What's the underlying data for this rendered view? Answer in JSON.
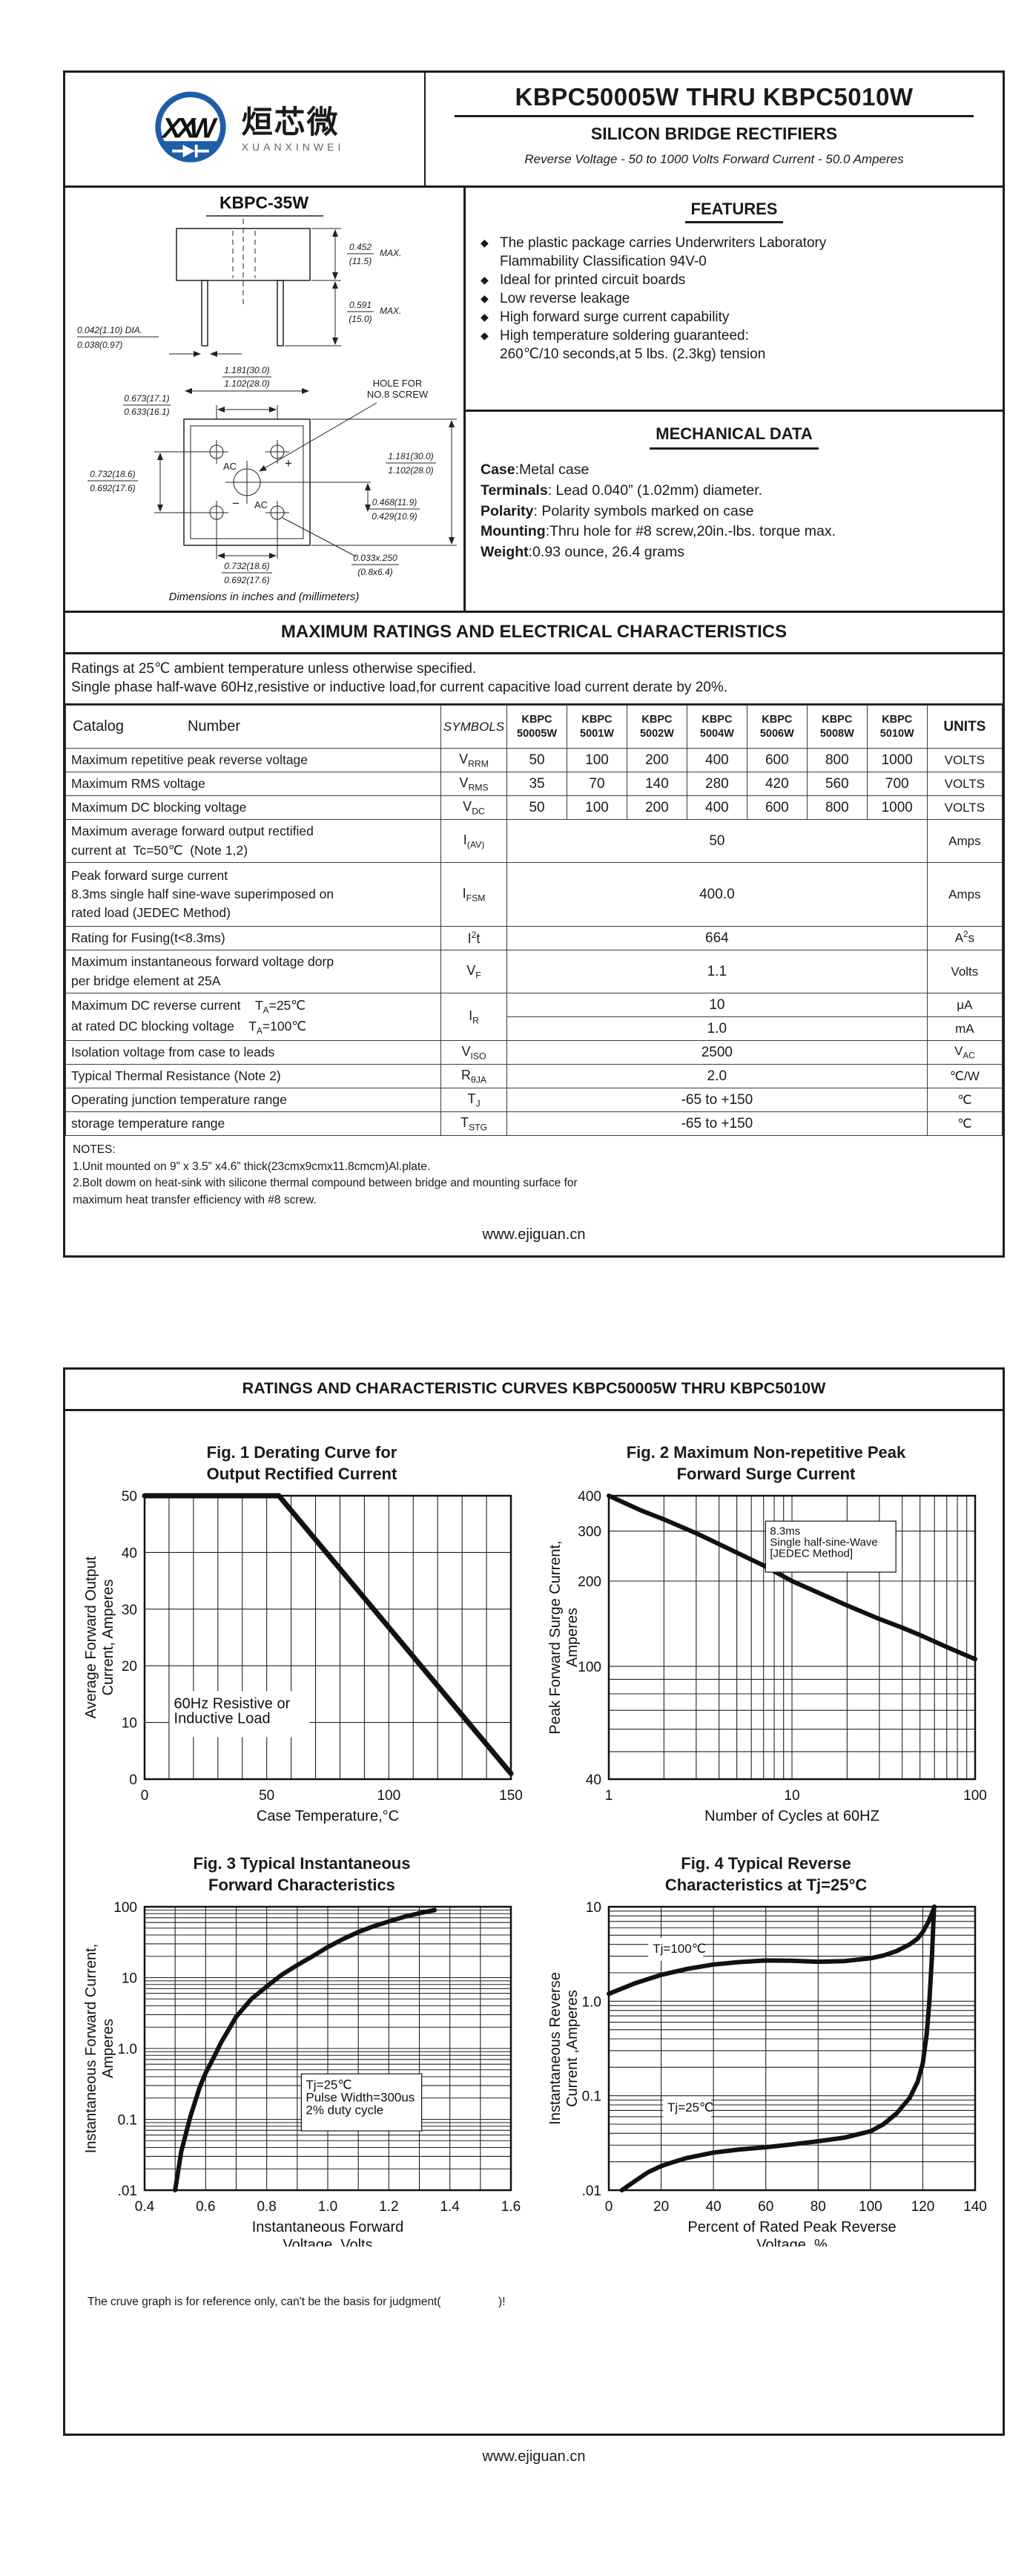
{
  "page1": {
    "logo": {
      "cn": "烜芯微",
      "en": "XUANXINWEI",
      "blue": "#1f5ca9",
      "green": "#3aa648"
    },
    "title": "KBPC50005W THRU KBPC5010W",
    "subtitle": "SILICON BRIDGE RECTIFIERS",
    "tagline": "Reverse Voltage - 50 to 1000 Volts    Forward Current - 50.0 Amperes",
    "drawing": {
      "title": "KBPC-35W",
      "caption": "Dimensions in inches and (millimeters)",
      "labels": {
        "bh1": "0.452",
        "bh2": "(11.5)",
        "bhm": "MAX.",
        "ll1": "0.591",
        "ll2": "(15.0)",
        "llm": "MAX.",
        "d1": "0.042(1.10) DIA.",
        "d2": "0.038(0.97)",
        "t1a": "1.181(30.0)",
        "t1b": "1.102(28.0)",
        "t2a": "0.673(17.1)",
        "t2b": "0.633(16.1)",
        "la": "0.732(18.6)",
        "lb": "0.692(17.6)",
        "r1a": "1.181(30.0)",
        "r1b": "1.102(28.0)",
        "r2a": "0.468(11.9)",
        "r2b": "0.429(10.9)",
        "ba": "0.732(18.6)",
        "bb": "0.692(17.6)",
        "sa": "0.033x.250",
        "sb": "(0.8x6.4)",
        "hole1": "HOLE FOR",
        "hole2": "NO.8 SCREW",
        "ac1": "AC",
        "ac2": "AC",
        "plus": "+",
        "minus": "−"
      }
    },
    "features": {
      "heading": "FEATURES",
      "items": [
        [
          "The plastic package carries Underwriters Laboratory",
          "Flammability Classification 94V-0"
        ],
        [
          "Ideal for printed circuit boards"
        ],
        [
          "Low reverse leakage"
        ],
        [
          "High forward surge current capability"
        ],
        [
          "High temperature soldering guaranteed:",
          "260℃/10 seconds,at 5 lbs. (2.3kg) tension"
        ]
      ]
    },
    "mechanical": {
      "heading": "MECHANICAL DATA",
      "rows": [
        {
          "b": "Case",
          "t": ":Metal case"
        },
        {
          "b": "Terminals",
          "t": ": Lead 0.040”  (1.02mm) diameter."
        },
        {
          "b": "Polarity",
          "t": ": Polarity symbols marked on case"
        },
        {
          "b": "Mounting",
          "t": ":Thru hole for #8 screw,20in.-lbs. torque max."
        },
        {
          "b": "Weight",
          "t": ":0.93 ounce, 26.4 grams"
        }
      ]
    },
    "banner": "MAXIMUM RATINGS AND ELECTRICAL CHARACTERISTICS",
    "conditions": [
      "Ratings at 25℃ ambient temperature unless otherwise specified.",
      "Single phase half-wave 60Hz,resistive or inductive load,for current capacitive load current derate by 20%."
    ],
    "table": {
      "catalog_label": "Catalog",
      "number_label": "Number",
      "symbols_label": "SYMBOLS",
      "units_label": "UNITS",
      "parts": [
        [
          "KBPC",
          "50005W"
        ],
        [
          "KBPC",
          "5001W"
        ],
        [
          "KBPC",
          "5002W"
        ],
        [
          "KBPC",
          "5004W"
        ],
        [
          "KBPC",
          "5006W"
        ],
        [
          "KBPC",
          "5008W"
        ],
        [
          "KBPC",
          "5010W"
        ]
      ],
      "rows": [
        {
          "label": "Maximum repetitive peak reverse voltage",
          "symbol": "V_{RRM}",
          "values": [
            "50",
            "100",
            "200",
            "400",
            "600",
            "800",
            "1000"
          ],
          "units": "VOLTS"
        },
        {
          "label": "Maximum RMS voltage",
          "symbol": "V_{RMS}",
          "values": [
            "35",
            "70",
            "140",
            "280",
            "420",
            "560",
            "700"
          ],
          "units": "VOLTS"
        },
        {
          "label": "Maximum DC blocking voltage",
          "symbol": "V_{DC}",
          "values": [
            "50",
            "100",
            "200",
            "400",
            "600",
            "800",
            "1000"
          ],
          "units": "VOLTS"
        },
        {
          "label": "Maximum average forward output rectified\ncurrent at  Tc=50℃  (Note 1,2)",
          "symbol": "I_{(AV)}",
          "span": "50",
          "units": "Amps",
          "h": 58
        },
        {
          "label": "Peak forward surge current\n8.3ms single half sine-wave superimposed on\nrated load (JEDEC Method)",
          "symbol": "I_{FSM}",
          "span": "400.0",
          "units": "Amps",
          "h": 86
        },
        {
          "label": "Rating for Fusing(t<8.3ms)",
          "symbol": "I^{2}t",
          "span": "664",
          "units": "A^{2}s"
        },
        {
          "label": "Maximum instantaneous forward voltage dorp\nper bridge element at 25A",
          "symbol": "V_{F}",
          "span": "1.1",
          "units": "Volts",
          "h": 58
        },
        {
          "label": "Maximum DC reverse current    T_{A}=25℃\nat rated DC blocking voltage    T_{A}=100℃",
          "symbol": "I_{R}",
          "sub": [
            {
              "span": "10",
              "units": "μA"
            },
            {
              "span": "1.0",
              "units": "mA"
            }
          ],
          "h": 32
        },
        {
          "label": "Isolation voltage from case to leads",
          "symbol": "V_{ISO}",
          "span": "2500",
          "units": "V_{AC}"
        },
        {
          "label": "Typical Thermal Resistance (Note 2)",
          "symbol": "R_{θJA}",
          "span": "2.0",
          "units": "℃/W"
        },
        {
          "label": "Operating junction temperature range",
          "symbol": "T_{J}",
          "span": "-65 to +150",
          "units": "℃"
        },
        {
          "label": "storage temperature range",
          "symbol": "T_{STG}",
          "span": "-65 to +150",
          "units": "℃"
        }
      ]
    },
    "notes": [
      "NOTES:",
      "1.Unit mounted on 9”  x 3.5”  x4.6”  thick(23cmx9cmx11.8cmcm)Al.plate.",
      "2.Bolt dowm on heat-sink with silicone thermal compound between bridge and mounting surface for",
      "   maximum heat transfer efficiency with #8 screw."
    ],
    "website": "www.ejiguan.cn"
  },
  "page2": {
    "banner": "RATINGS AND CHARACTERISTIC CURVES KBPC50005W THRU KBPC5010W",
    "disclaimer": "The cruve graph is for reference only, can't be the basis for judgment(                  )!",
    "website": "www.ejiguan.cn"
  },
  "chart_data": [
    {
      "id": "fig1",
      "type": "line",
      "title_lines": [
        "Fig. 1 Derating Curve for",
        "Output Rectified Current"
      ],
      "xlabel_lines": [
        "Case Temperature,°C"
      ],
      "ylabel_lines": [
        "Average Forward Output",
        "Current, Amperes"
      ],
      "x": {
        "scale": "linear",
        "min": 0,
        "max": 150,
        "grid_step": 10,
        "ticks": [
          {
            "v": 0,
            "l": "0"
          },
          {
            "v": 50,
            "l": "50"
          },
          {
            "v": 100,
            "l": "100"
          },
          {
            "v": 150,
            "l": "150"
          }
        ]
      },
      "y": {
        "scale": "linear",
        "min": 0,
        "max": 50,
        "grid_step": 10,
        "ticks": [
          {
            "v": 0,
            "l": "0"
          },
          {
            "v": 10,
            "l": "10"
          },
          {
            "v": 20,
            "l": "20"
          },
          {
            "v": 30,
            "l": "30"
          },
          {
            "v": 40,
            "l": "40"
          },
          {
            "v": 50,
            "l": "50"
          }
        ]
      },
      "series": [
        {
          "name": "derating-curve",
          "points": [
            [
              0,
              50
            ],
            [
              55,
              50
            ],
            [
              150,
              1
            ]
          ]
        }
      ],
      "annotations": [
        {
          "lines": [
            "60Hz Resistive or",
            "Inductive Load"
          ],
          "fx": 0.08,
          "fy": 0.7,
          "fs": 20,
          "bg": true,
          "border": false
        }
      ]
    },
    {
      "id": "fig2",
      "type": "line",
      "title_lines": [
        "Fig. 2 Maximum Non-repetitive Peak",
        "Forward Surge Current"
      ],
      "xlabel_lines": [
        "Number of Cycles at 60HZ"
      ],
      "ylabel_lines": [
        "Peak Forward Surge Current,",
        "Amperes"
      ],
      "x": {
        "scale": "log",
        "min": 1,
        "max": 100,
        "ticks": [
          {
            "v": 1,
            "l": "1"
          },
          {
            "v": 10,
            "l": "10"
          },
          {
            "v": 100,
            "l": "100"
          }
        ]
      },
      "y": {
        "scale": "log",
        "min": 40,
        "max": 400,
        "ticks": [
          {
            "v": 400,
            "l": "400"
          },
          {
            "v": 300,
            "l": "300"
          },
          {
            "v": 200,
            "l": "200"
          },
          {
            "v": 100,
            "l": "100"
          },
          {
            "v": 40,
            "l": "40"
          }
        ]
      },
      "series": [
        {
          "name": "surge-current",
          "points": [
            [
              1,
              400
            ],
            [
              1.5,
              355
            ],
            [
              2,
              330
            ],
            [
              3,
              295
            ],
            [
              4,
              270
            ],
            [
              5,
              252
            ],
            [
              7,
              227
            ],
            [
              10,
              200
            ],
            [
              15,
              178
            ],
            [
              20,
              164
            ],
            [
              30,
              147
            ],
            [
              40,
              137
            ],
            [
              50,
              129
            ],
            [
              70,
              117
            ],
            [
              100,
              106
            ]
          ]
        }
      ],
      "annotations": [
        {
          "lines": [
            "8.3ms",
            "Single half-sine-Wave",
            "[JEDEC Method]"
          ],
          "fx": 0.44,
          "fy": 0.1,
          "fs": 15,
          "bg": true,
          "border": true
        }
      ]
    },
    {
      "id": "fig3",
      "type": "line",
      "title_lines": [
        "Fig. 3  Typical Instantaneous",
        "Forward Characteristics"
      ],
      "xlabel_lines": [
        "Instantaneous Forward",
        "Voltage, Volts"
      ],
      "ylabel_lines": [
        "Instantaneous Forward Current,",
        "Amperes"
      ],
      "x": {
        "scale": "linear",
        "min": 0.4,
        "max": 1.6,
        "grid_step": 0.1,
        "ticks": [
          {
            "v": 0.4,
            "l": "0.4"
          },
          {
            "v": 0.6,
            "l": "0.6"
          },
          {
            "v": 0.8,
            "l": "0.8"
          },
          {
            "v": 1.0,
            "l": "1.0"
          },
          {
            "v": 1.2,
            "l": "1.2"
          },
          {
            "v": 1.4,
            "l": "1.4"
          },
          {
            "v": 1.6,
            "l": "1.6"
          }
        ]
      },
      "y": {
        "scale": "log",
        "min": 0.01,
        "max": 100,
        "ticks": [
          {
            "v": 0.01,
            "l": ".01"
          },
          {
            "v": 0.1,
            "l": "0.1"
          },
          {
            "v": 1,
            "l": "1.0"
          },
          {
            "v": 10,
            "l": "10"
          },
          {
            "v": 100,
            "l": "100"
          }
        ]
      },
      "series": [
        {
          "name": "forward-characteristic",
          "points": [
            [
              0.5,
              0.01
            ],
            [
              0.52,
              0.035
            ],
            [
              0.55,
              0.11
            ],
            [
              0.58,
              0.28
            ],
            [
              0.6,
              0.45
            ],
            [
              0.63,
              0.8
            ],
            [
              0.65,
              1.2
            ],
            [
              0.7,
              2.8
            ],
            [
              0.75,
              5.0
            ],
            [
              0.8,
              7.5
            ],
            [
              0.85,
              11
            ],
            [
              0.9,
              15
            ],
            [
              0.95,
              20
            ],
            [
              1.0,
              27
            ],
            [
              1.05,
              35
            ],
            [
              1.1,
              44
            ],
            [
              1.15,
              53
            ],
            [
              1.2,
              62
            ],
            [
              1.25,
              72
            ],
            [
              1.3,
              81
            ],
            [
              1.35,
              90
            ]
          ]
        }
      ],
      "annotations": [
        {
          "lines": [
            "Tj=25℃",
            "Pulse Width=300us",
            "2% duty cycle"
          ],
          "fx": 0.44,
          "fy": 0.6,
          "fs": 17,
          "bg": true,
          "border": true
        }
      ]
    },
    {
      "id": "fig4",
      "type": "line",
      "title_lines": [
        "Fig. 4  Typical Reverse",
        "Characteristics at  Tj=25°C"
      ],
      "xlabel_lines": [
        "Percent of Rated Peak  Reverse",
        "Voltage, %"
      ],
      "ylabel_lines": [
        "Instantaneous Reverse",
        "Current ,Amperes"
      ],
      "x": {
        "scale": "linear",
        "min": 0,
        "max": 140,
        "grid_step": 20,
        "ticks": [
          {
            "v": 0,
            "l": "0"
          },
          {
            "v": 20,
            "l": "20"
          },
          {
            "v": 40,
            "l": "40"
          },
          {
            "v": 60,
            "l": "60"
          },
          {
            "v": 80,
            "l": "80"
          },
          {
            "v": 100,
            "l": "100"
          },
          {
            "v": 120,
            "l": "120"
          },
          {
            "v": 140,
            "l": "140"
          }
        ]
      },
      "y": {
        "scale": "log",
        "min": 0.01,
        "max": 10,
        "ticks": [
          {
            "v": 0.01,
            "l": ".01"
          },
          {
            "v": 0.1,
            "l": "0.1"
          },
          {
            "v": 1,
            "l": "1.0"
          },
          {
            "v": 10,
            "l": "10"
          }
        ]
      },
      "series": [
        {
          "name": "Tj=100C",
          "points": [
            [
              0,
              1.2
            ],
            [
              10,
              1.55
            ],
            [
              20,
              1.9
            ],
            [
              30,
              2.2
            ],
            [
              40,
              2.45
            ],
            [
              50,
              2.6
            ],
            [
              60,
              2.7
            ],
            [
              70,
              2.68
            ],
            [
              80,
              2.62
            ],
            [
              90,
              2.66
            ],
            [
              100,
              2.85
            ],
            [
              105,
              3.05
            ],
            [
              110,
              3.4
            ],
            [
              115,
              4.0
            ],
            [
              118,
              4.6
            ],
            [
              120,
              5.4
            ],
            [
              122,
              6.8
            ],
            [
              123.5,
              8.5
            ],
            [
              124.5,
              10
            ]
          ]
        },
        {
          "name": "Tj=25C",
          "points": [
            [
              5,
              0.01
            ],
            [
              10,
              0.0125
            ],
            [
              15,
              0.0155
            ],
            [
              20,
              0.018
            ],
            [
              25,
              0.02
            ],
            [
              30,
              0.022
            ],
            [
              40,
              0.025
            ],
            [
              50,
              0.027
            ],
            [
              60,
              0.0285
            ],
            [
              70,
              0.0305
            ],
            [
              80,
              0.033
            ],
            [
              90,
              0.036
            ],
            [
              100,
              0.042
            ],
            [
              105,
              0.05
            ],
            [
              110,
              0.065
            ],
            [
              115,
              0.095
            ],
            [
              118,
              0.14
            ],
            [
              120,
              0.22
            ],
            [
              121.5,
              0.45
            ],
            [
              122.5,
              1.0
            ],
            [
              123.5,
              3.0
            ],
            [
              124.3,
              10
            ]
          ]
        }
      ],
      "annotations": [
        {
          "lines": [
            "Tj=100℃"
          ],
          "fx": 0.12,
          "fy": 0.12,
          "fs": 17,
          "bg": true,
          "border": false
        },
        {
          "lines": [
            "Tj=25℃"
          ],
          "fx": 0.16,
          "fy": 0.68,
          "fs": 17,
          "bg": true,
          "border": false
        }
      ]
    }
  ]
}
